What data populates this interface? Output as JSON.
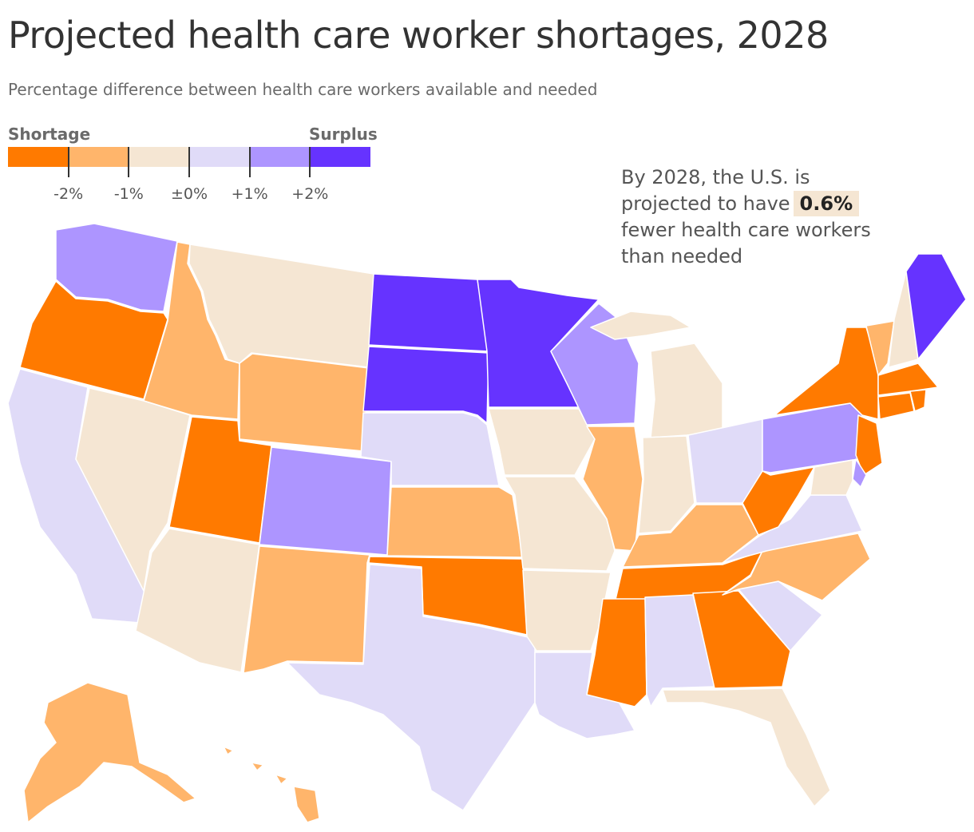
{
  "title": "Projected health care worker shortages, 2028",
  "subtitle": "Percentage difference between health care workers available and needed",
  "legend": {
    "left_label": "Shortage",
    "right_label": "Surplus",
    "bins": [
      {
        "color": "#ff7a00"
      },
      {
        "color": "#ffb56b"
      },
      {
        "color": "#f5e6d3"
      },
      {
        "color": "#e0dbf8"
      },
      {
        "color": "#ad95ff"
      },
      {
        "color": "#6633ff"
      }
    ],
    "ticks": [
      "-2%",
      "-1%",
      "±0%",
      "+1%",
      "+2%"
    ]
  },
  "annotation": {
    "line1": "By 2028, the U.S. is",
    "line2_prefix": "projected to have",
    "value": "0.6%",
    "line3": "fewer health care workers",
    "line4": "than needed"
  },
  "chart_data": {
    "type": "choropleth",
    "region": "United States",
    "bins": [
      {
        "range": "below -2%",
        "color": "#ff7a00"
      },
      {
        "range": "-2% to -1%",
        "color": "#ffb56b"
      },
      {
        "range": "-1% to ±0%",
        "color": "#f5e6d3"
      },
      {
        "range": "±0% to +1%",
        "color": "#e0dbf8"
      },
      {
        "range": "+1% to +2%",
        "color": "#ad95ff"
      },
      {
        "range": "above +2%",
        "color": "#6633ff"
      }
    ],
    "states": [
      {
        "name": "Washington",
        "bin": 4
      },
      {
        "name": "Oregon",
        "bin": 0
      },
      {
        "name": "California",
        "bin": 3
      },
      {
        "name": "Idaho",
        "bin": 1
      },
      {
        "name": "Nevada",
        "bin": 2
      },
      {
        "name": "Montana",
        "bin": 2
      },
      {
        "name": "Wyoming",
        "bin": 1
      },
      {
        "name": "Utah",
        "bin": 0
      },
      {
        "name": "Arizona",
        "bin": 2
      },
      {
        "name": "Colorado",
        "bin": 4
      },
      {
        "name": "New Mexico",
        "bin": 1
      },
      {
        "name": "North Dakota",
        "bin": 5
      },
      {
        "name": "South Dakota",
        "bin": 5
      },
      {
        "name": "Nebraska",
        "bin": 3
      },
      {
        "name": "Kansas",
        "bin": 1
      },
      {
        "name": "Oklahoma",
        "bin": 0
      },
      {
        "name": "Texas",
        "bin": 3
      },
      {
        "name": "Minnesota",
        "bin": 5
      },
      {
        "name": "Iowa",
        "bin": 2
      },
      {
        "name": "Missouri",
        "bin": 2
      },
      {
        "name": "Arkansas",
        "bin": 2
      },
      {
        "name": "Louisiana",
        "bin": 3
      },
      {
        "name": "Wisconsin",
        "bin": 4
      },
      {
        "name": "Illinois",
        "bin": 1
      },
      {
        "name": "Michigan",
        "bin": 2
      },
      {
        "name": "Indiana",
        "bin": 2
      },
      {
        "name": "Ohio",
        "bin": 3
      },
      {
        "name": "Kentucky",
        "bin": 1
      },
      {
        "name": "Tennessee",
        "bin": 0
      },
      {
        "name": "Mississippi",
        "bin": 0
      },
      {
        "name": "Alabama",
        "bin": 3
      },
      {
        "name": "Georgia",
        "bin": 0
      },
      {
        "name": "Florida",
        "bin": 2
      },
      {
        "name": "South Carolina",
        "bin": 3
      },
      {
        "name": "North Carolina",
        "bin": 1
      },
      {
        "name": "Virginia",
        "bin": 3
      },
      {
        "name": "West Virginia",
        "bin": 0
      },
      {
        "name": "Pennsylvania",
        "bin": 4
      },
      {
        "name": "New York",
        "bin": 0
      },
      {
        "name": "Vermont",
        "bin": 1
      },
      {
        "name": "New Hampshire",
        "bin": 2
      },
      {
        "name": "Maine",
        "bin": 5
      },
      {
        "name": "Massachusetts",
        "bin": 0
      },
      {
        "name": "Connecticut",
        "bin": 0
      },
      {
        "name": "Rhode Island",
        "bin": 0
      },
      {
        "name": "New Jersey",
        "bin": 0
      },
      {
        "name": "Delaware",
        "bin": 4
      },
      {
        "name": "Maryland",
        "bin": 2
      },
      {
        "name": "Alaska",
        "bin": 1
      },
      {
        "name": "Hawaii",
        "bin": 1
      }
    ]
  }
}
